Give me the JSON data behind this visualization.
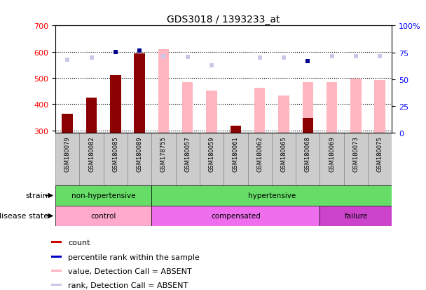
{
  "title": "GDS3018 / 1393233_at",
  "samples": [
    "GSM180079",
    "GSM180082",
    "GSM180085",
    "GSM180089",
    "GSM178755",
    "GSM180057",
    "GSM180059",
    "GSM180061",
    "GSM180062",
    "GSM180065",
    "GSM180068",
    "GSM180069",
    "GSM180073",
    "GSM180075"
  ],
  "count_values": [
    363,
    424,
    510,
    593,
    null,
    null,
    null,
    319,
    null,
    null,
    348,
    null,
    null,
    null
  ],
  "value_absent": [
    363,
    424,
    510,
    593,
    609,
    484,
    452,
    319,
    462,
    432,
    484,
    484,
    496,
    491
  ],
  "rank_absent": [
    570,
    578,
    null,
    null,
    582,
    579,
    547,
    null,
    577,
    577,
    null,
    583,
    583,
    583
  ],
  "percentile_dark": [
    null,
    null,
    600,
    605,
    null,
    null,
    null,
    null,
    null,
    null,
    565,
    null,
    null,
    null
  ],
  "ylim_left": [
    290,
    700
  ],
  "ylim_right": [
    0,
    100
  ],
  "yticks_left": [
    300,
    400,
    500,
    600,
    700
  ],
  "yticks_right": [
    0,
    25,
    50,
    75,
    100
  ],
  "bar_bottom": 290,
  "count_color": "#8B0000",
  "value_absent_color": "#FFB6C1",
  "rank_absent_color": "#C8C8E8",
  "percentile_color": "#00008B",
  "strain_groups": [
    {
      "label": "non-hypertensive",
      "start": 0,
      "end": 4,
      "color": "#66DD66"
    },
    {
      "label": "hypertensive",
      "start": 4,
      "end": 14,
      "color": "#66DD66"
    }
  ],
  "disease_groups": [
    {
      "label": "control",
      "start": 0,
      "end": 4,
      "color": "#FFAACC"
    },
    {
      "label": "compensated",
      "start": 4,
      "end": 11,
      "color": "#EE6EEE"
    },
    {
      "label": "failure",
      "start": 11,
      "end": 14,
      "color": "#CC44CC"
    }
  ],
  "legend_items": [
    {
      "label": "count",
      "color": "#CC0000"
    },
    {
      "label": "percentile rank within the sample",
      "color": "#0000CC"
    },
    {
      "label": "value, Detection Call = ABSENT",
      "color": "#FFB6C1"
    },
    {
      "label": "rank, Detection Call = ABSENT",
      "color": "#C8C8E8"
    }
  ]
}
